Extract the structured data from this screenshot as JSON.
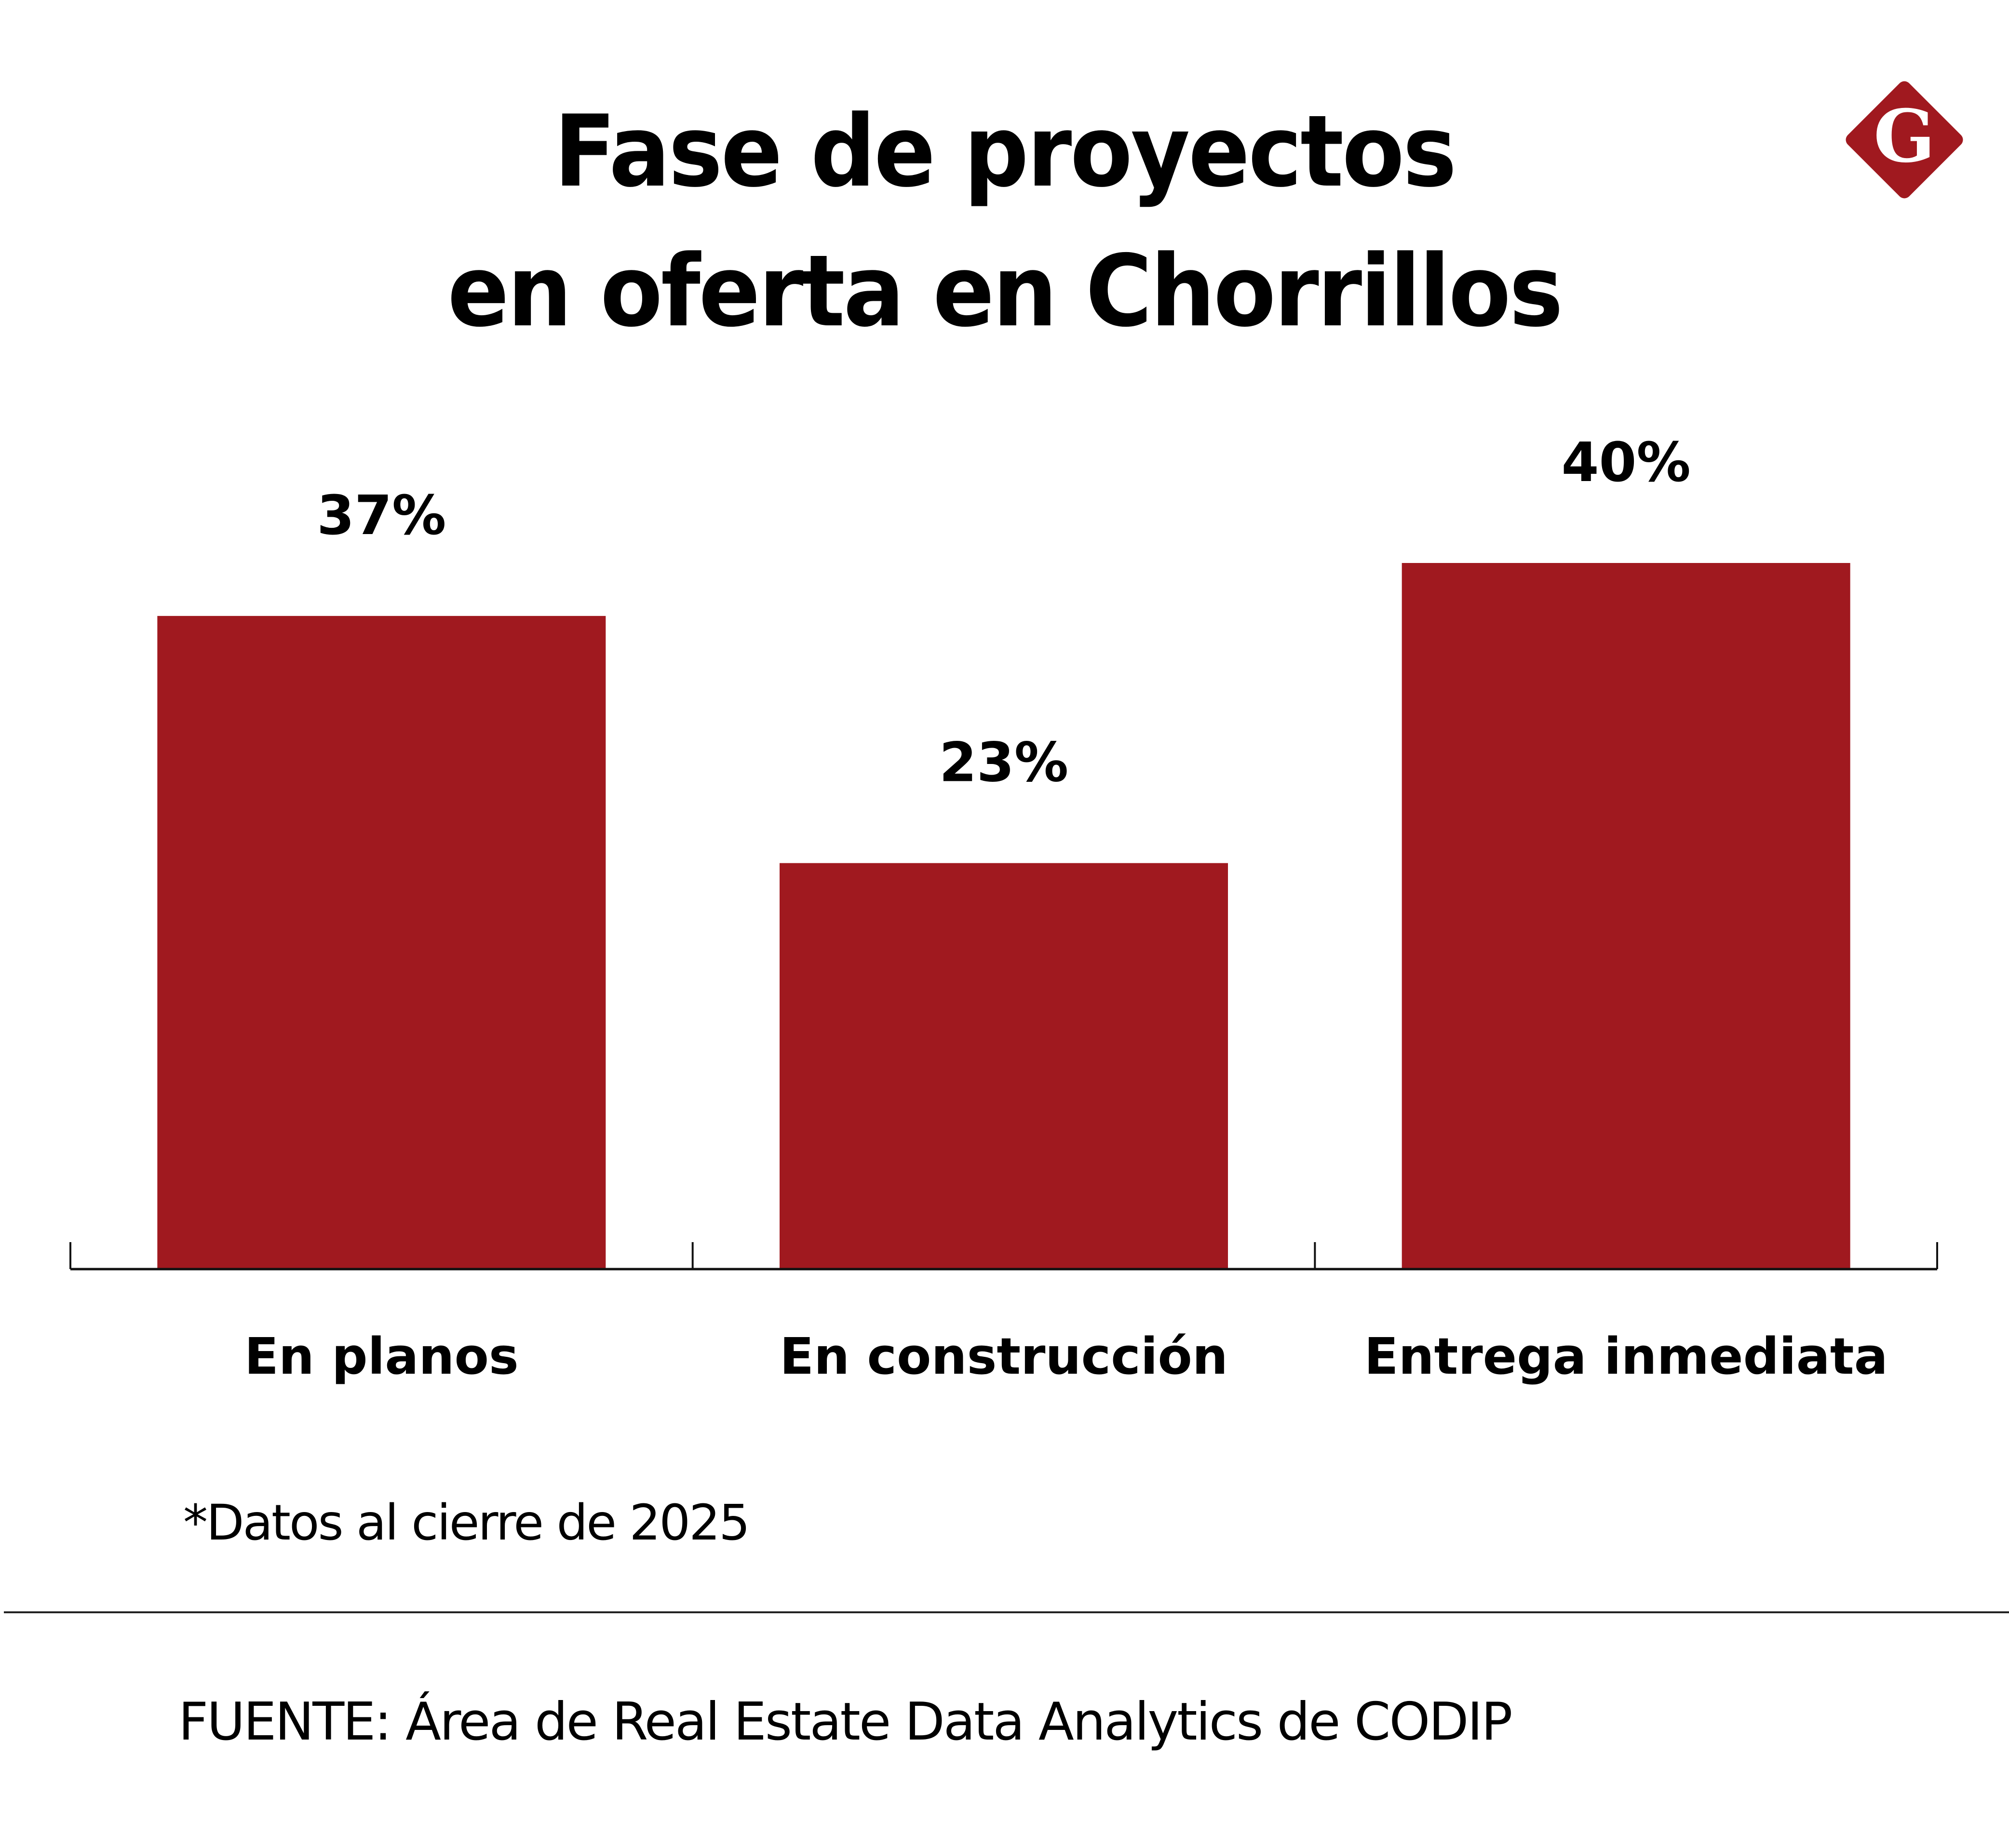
{
  "title_lines": [
    "Fase de proyectos",
    "en oferta en Chorrillos"
  ],
  "logo": {
    "icon": "diamond-g-logo-icon",
    "letter": "G",
    "color": "#A0191F"
  },
  "colors": {
    "bar": "#A0191F",
    "axis": "#111111",
    "text": "#000000"
  },
  "footnote": "*Datos al cierre de 2025",
  "source": "FUENTE: Área de Real Estate Data Analytics de CODIP",
  "chart_data": {
    "type": "bar",
    "title": "Fase de proyectos en oferta en Chorrillos",
    "categories": [
      "En planos",
      "En construcción",
      "Entrega inmediata"
    ],
    "values": [
      37,
      23,
      40
    ],
    "value_labels": [
      "37%",
      "23%",
      "40%"
    ],
    "unit": "%",
    "xlabel": "",
    "ylabel": "",
    "ylim": [
      0,
      40
    ],
    "grid": false,
    "legend": "none"
  }
}
